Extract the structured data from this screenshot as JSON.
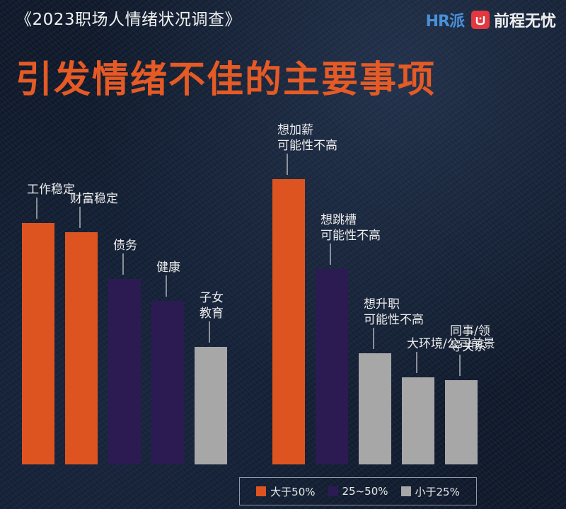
{
  "header": {
    "title": "《2023职场人情绪状况调查》",
    "logo_hr": "HR派",
    "logo_brand": "前程无忧"
  },
  "main_title": "引发情绪不佳的主要事项",
  "colors": {
    "orange": "#de5420",
    "purple": "#2b1b52",
    "gray": "#a7a7a7"
  },
  "legend": [
    {
      "label": "大于50%",
      "color": "#de5420"
    },
    {
      "label": "25~50%",
      "color": "#2b1b52"
    },
    {
      "label": "小于25%",
      "color": "#a7a7a7"
    }
  ],
  "chart_data": [
    {
      "type": "bar",
      "categories": [
        "工作稳定",
        "财富稳定",
        "债务",
        "健康",
        "子女\n教育"
      ],
      "values": [
        341,
        328,
        262,
        231,
        166
      ],
      "colors": [
        "orange",
        "orange",
        "purple",
        "purple",
        "gray"
      ]
    },
    {
      "type": "bar",
      "categories": [
        "想加薪\n可能性不高",
        "想跳槽\n可能性不高",
        "想升职\n可能性不高",
        "大环境/公司前景",
        "同事/领\n导关系"
      ],
      "values": [
        403,
        276,
        157,
        123,
        119
      ],
      "colors": [
        "orange",
        "purple",
        "gray",
        "gray",
        "gray"
      ]
    }
  ]
}
